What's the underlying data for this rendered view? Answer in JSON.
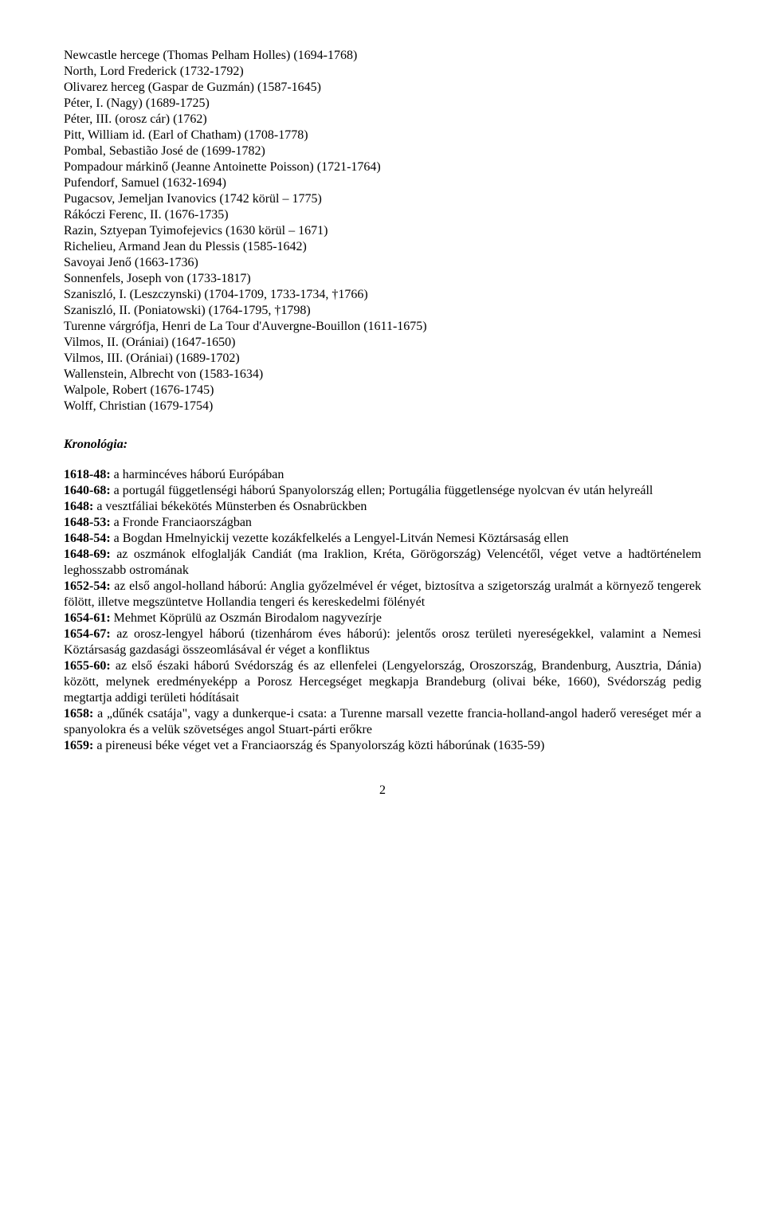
{
  "entries": [
    "Newcastle hercege (Thomas Pelham Holles) (1694-1768)",
    "North, Lord Frederick (1732-1792)",
    "Olivarez herceg (Gaspar de Guzmán) (1587-1645)",
    "Péter, I. (Nagy) (1689-1725)",
    "Péter, III. (orosz cár) (1762)",
    "Pitt, William id. (Earl of Chatham) (1708-1778)",
    "Pombal, Sebastião José de (1699-1782)",
    "Pompadour márkinő (Jeanne Antoinette Poisson) (1721-1764)",
    "Pufendorf, Samuel (1632-1694)",
    "Pugacsov, Jemeljan Ivanovics (1742 körül – 1775)",
    "Rákóczi Ferenc, II. (1676-1735)",
    "Razin, Sztyepan Tyimofejevics (1630 körül – 1671)",
    "Richelieu, Armand Jean du Plessis (1585-1642)",
    "Savoyai Jenő (1663-1736)",
    "Sonnenfels, Joseph von (1733-1817)",
    "Szaniszló, I. (Leszczynski) (1704-1709, 1733-1734, †1766)",
    "Szaniszló, II. (Poniatowski) (1764-1795, †1798)",
    "Turenne várgrófja, Henri de La Tour d'Auvergne-Bouillon (1611-1675)",
    "Vilmos, II. (Orániai) (1647-1650)",
    "Vilmos, III. (Orániai) (1689-1702)",
    "Wallenstein, Albrecht von (1583-1634)",
    "Walpole, Robert (1676-1745)",
    "Wolff, Christian (1679-1754)"
  ],
  "chronology_title": "Kronológia:",
  "chronology": [
    {
      "year": "1618-48:",
      "text": " a harmincéves háború Európában"
    },
    {
      "year": "1640-68:",
      "text": " a portugál függetlenségi háború Spanyolország ellen; Portugália függetlensége nyolcvan év után helyreáll"
    },
    {
      "year": "1648:",
      "text": " a vesztfáliai békekötés Münsterben és Osnabrückben"
    },
    {
      "year": "1648-53:",
      "text": " a Fronde Franciaországban"
    },
    {
      "year": "1648-54:",
      "text": " a Bogdan Hmelnyickij vezette kozákfelkelés a Lengyel-Litván Nemesi Köztársaság ellen"
    },
    {
      "year": "1648-69:",
      "text": " az oszmánok elfoglalják Candiát (ma Iraklion, Kréta, Görögország) Velencétől, véget vetve a hadtörténelem leghosszabb ostromának"
    },
    {
      "year": "1652-54:",
      "text": " az első angol-holland háború: Anglia győzelmével ér véget, biztosítva a szigetország uralmát a környező tengerek fölött, illetve megszüntetve Hollandia tengeri és kereskedelmi fölényét"
    },
    {
      "year": "1654-61:",
      "text": " Mehmet Köprülü az Oszmán Birodalom nagyvezírje"
    },
    {
      "year": "1654-67:",
      "text": " az orosz-lengyel háború (tizenhárom éves háború): jelentős orosz területi nyereségekkel, valamint a Nemesi Köztársaság gazdasági összeomlásával ér véget a konfliktus"
    },
    {
      "year": "1655-60:",
      "text": " az első északi háború Svédország és az ellenfelei (Lengyelország, Oroszország, Brandenburg, Ausztria, Dánia) között, melynek eredményeképp a Porosz Hercegséget megkapja Brandeburg (olivai béke, 1660), Svédország pedig megtartja addigi területi hódításait"
    },
    {
      "year": "1658:",
      "text": " a „dűnék csatája\", vagy a dunkerque-i csata: a Turenne marsall vezette francia-holland-angol haderő vereséget mér a spanyolokra és a velük szövetséges angol Stuart-párti erőkre"
    },
    {
      "year": "1659:",
      "text": " a pireneusi béke véget vet a Franciaország és Spanyolország közti háborúnak (1635-59)"
    }
  ],
  "page_number": "2"
}
